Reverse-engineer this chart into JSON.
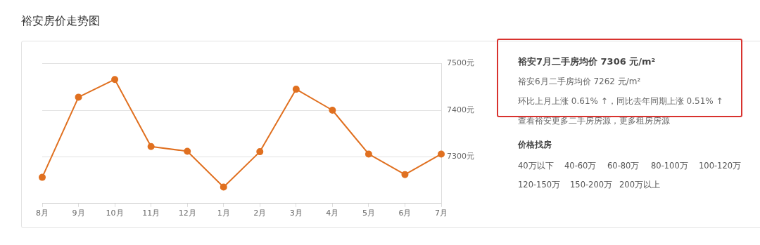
{
  "chart_data": [
    {
      "type": "line",
      "title": "裕安房价走势图",
      "categories": [
        "8月",
        "9月",
        "10月",
        "11月",
        "12月",
        "1月",
        "2月",
        "3月",
        "4月",
        "5月",
        "6月",
        "7月"
      ],
      "series": [
        {
          "color": "#e07020",
          "values": [
            7256,
            7428,
            7466,
            7322,
            7312,
            7235,
            7311,
            7445,
            7400,
            7306,
            7262,
            7306
          ]
        }
      ],
      "ylim": [
        7200,
        7500
      ],
      "yticks": [
        {
          "value": 7300,
          "label": "7300元"
        },
        {
          "value": 7400,
          "label": "7400元"
        },
        {
          "value": 7500,
          "label": "7500元"
        }
      ],
      "grid": "y",
      "legend": false,
      "marker": "circle",
      "line_style": "solid"
    },
    {
      "type": "other",
      "annotations": [
        "裕安7月二手房均价 7306 元/m²",
        "裕安6月二手房均价 7262 元/m²",
        "环比上月上涨 0.61% ↑，同比去年同期上涨 0.51% ↑",
        "查看裕安更多二手房房源，更多租房房源",
        "价格找房",
        "40万以下",
        "40-60万",
        "60-80万",
        "80-100万",
        "100-120万",
        "120-150万",
        "150-200万",
        "200万以上"
      ]
    }
  ]
}
